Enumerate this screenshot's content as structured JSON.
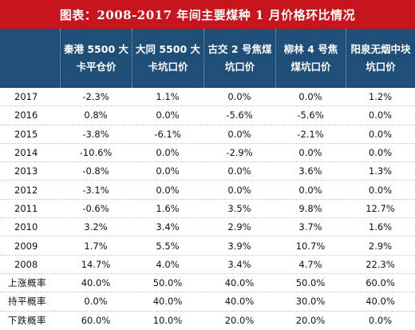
{
  "title": "图表：2008-2017 年间主要煤种 1 月价格环比情况",
  "headers": [
    "",
    "秦港 5500 大卡平仓价",
    "大同 5500 大卡坑口价",
    "古交 2 号焦煤坑口价",
    "柳林 4 号焦煤坑口价",
    "阳泉无烟中块坑口价"
  ],
  "rows": [
    {
      "label": "2017",
      "values": [
        "-2.3%",
        "1.1%",
        "0.0%",
        "0.0%",
        "1.2%"
      ]
    },
    {
      "label": "2016",
      "values": [
        "0.8%",
        "0.0%",
        "-5.6%",
        "-5.6%",
        "0.0%"
      ]
    },
    {
      "label": "2015",
      "values": [
        "-3.8%",
        "-6.1%",
        "0.0%",
        "-2.1%",
        "0.0%"
      ]
    },
    {
      "label": "2014",
      "values": [
        "-10.6%",
        "0.0%",
        "-2.9%",
        "0.0%",
        "0.0%"
      ]
    },
    {
      "label": "2013",
      "values": [
        "-0.8%",
        "0.0%",
        "0.0%",
        "3.6%",
        "1.3%"
      ]
    },
    {
      "label": "2012",
      "values": [
        "-3.1%",
        "0.0%",
        "0.0%",
        "0.0%",
        "0.0%"
      ]
    },
    {
      "label": "2011",
      "values": [
        "-0.6%",
        "1.6%",
        "3.5%",
        "9.8%",
        "12.7%"
      ]
    },
    {
      "label": "2010",
      "values": [
        "3.2%",
        "3.4%",
        "2.9%",
        "3.7%",
        "1.6%"
      ]
    },
    {
      "label": "2009",
      "values": [
        "1.7%",
        "5.5%",
        "3.9%",
        "10.7%",
        "2.9%"
      ]
    },
    {
      "label": "2008",
      "values": [
        "14.7%",
        "4.0%",
        "3.4%",
        "4.7%",
        "22.3%"
      ]
    },
    {
      "label": "上涨概率",
      "values": [
        "40.0%",
        "50.0%",
        "40.0%",
        "50.0%",
        "60.0%"
      ]
    },
    {
      "label": "持平概率",
      "values": [
        "0.0%",
        "40.0%",
        "40.0%",
        "30.0%",
        "40.0%"
      ]
    },
    {
      "label": "下跌概率",
      "values": [
        "60.0%",
        "10.0%",
        "20.0%",
        "20.0%",
        "0.0%"
      ]
    }
  ]
}
